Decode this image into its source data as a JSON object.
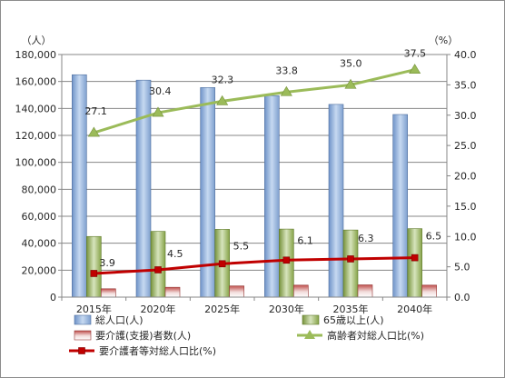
{
  "chart_data": {
    "type": "bar",
    "categories": [
      "2015年",
      "2020年",
      "2025年",
      "2030年",
      "2035年",
      "2040年"
    ],
    "left_axis": {
      "unit": "（人）",
      "ylim": [
        0,
        180000
      ],
      "ticks": [
        "0",
        "20,000",
        "40,000",
        "60,000",
        "80,000",
        "100,000",
        "120,000",
        "140,000",
        "160,000",
        "180,000"
      ]
    },
    "right_axis": {
      "unit": "（%）",
      "ylim": [
        0,
        40
      ],
      "ticks": [
        "0.0",
        "5.0",
        "10.0",
        "15.0",
        "20.0",
        "25.0",
        "30.0",
        "35.0",
        "40.0"
      ]
    },
    "series": [
      {
        "name": "総人口(人)",
        "type": "bar",
        "axis": "left",
        "color": "#95b3d7",
        "values": [
          165000,
          161000,
          155500,
          149500,
          143000,
          135500
        ]
      },
      {
        "name": "65歳以上(人)",
        "type": "bar",
        "axis": "left",
        "color": "#9bbb59",
        "values": [
          45000,
          48800,
          50300,
          50500,
          49800,
          50800
        ]
      },
      {
        "name": "要介護(支援)者数(人)",
        "type": "bar",
        "axis": "left",
        "color": "#e06666",
        "values": [
          6200,
          7300,
          8300,
          8900,
          9100,
          8900
        ]
      },
      {
        "name": "高齢者対総人口比(%)",
        "type": "line",
        "axis": "right",
        "color": "#9bbb59",
        "marker": "triangle",
        "values": [
          27.1,
          30.4,
          32.3,
          33.8,
          35.0,
          37.5
        ],
        "labels": [
          "27.1",
          "30.4",
          "32.3",
          "33.8",
          "35.0",
          "37.5"
        ]
      },
      {
        "name": "要介護者等対総人口比(%)",
        "type": "line",
        "axis": "right",
        "color": "#c00000",
        "marker": "square",
        "values": [
          3.9,
          4.5,
          5.5,
          6.1,
          6.3,
          6.5
        ],
        "labels": [
          "3.9",
          "4.5",
          "5.5",
          "6.1",
          "6.3",
          "6.5"
        ]
      }
    ],
    "grid": true,
    "legend": "bottom"
  }
}
